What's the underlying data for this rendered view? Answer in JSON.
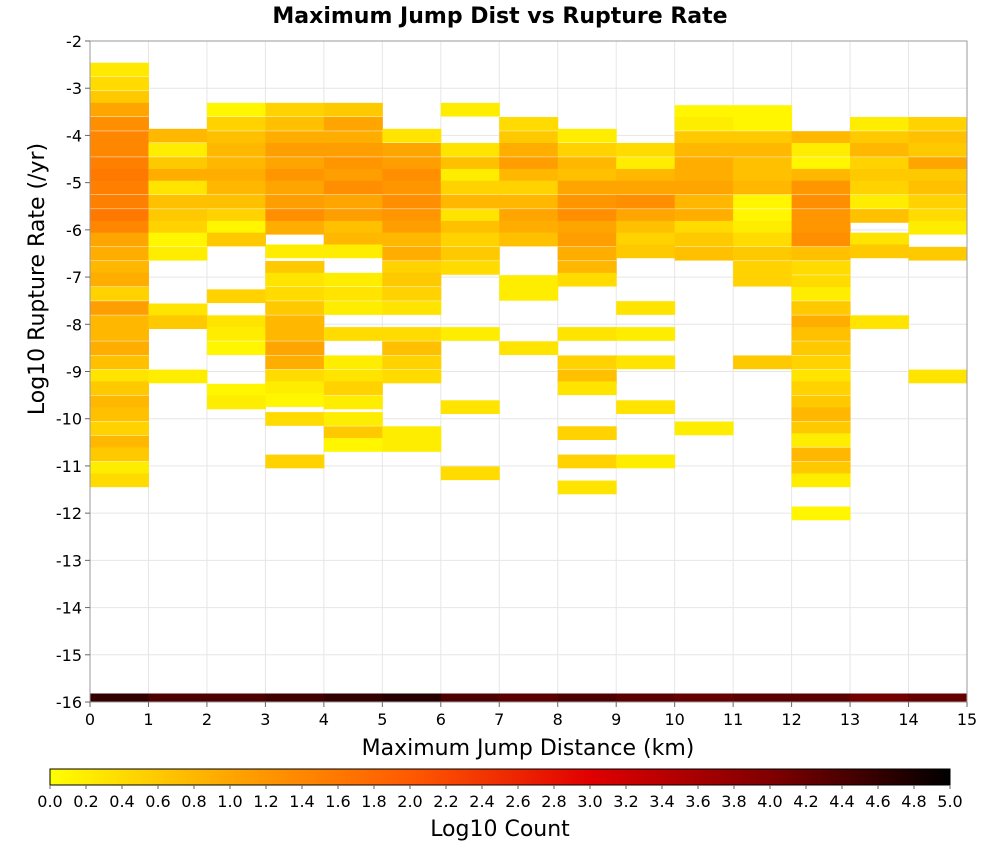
{
  "chart_data": {
    "type": "heatmap",
    "title": "Maximum Jump Dist vs Rupture Rate",
    "xlabel": "Maximum Jump Distance (km)",
    "ylabel": "Log10 Rupture Rate (/yr)",
    "xlim": [
      0,
      15
    ],
    "ylim": [
      -16,
      -2
    ],
    "x_ticks": [
      "0",
      "1",
      "2",
      "3",
      "4",
      "5",
      "6",
      "7",
      "8",
      "9",
      "10",
      "11",
      "12",
      "13",
      "14",
      "15"
    ],
    "y_ticks": [
      "-2",
      "-3",
      "-4",
      "-5",
      "-6",
      "-7",
      "-8",
      "-9",
      "-10",
      "-11",
      "-12",
      "-13",
      "-14",
      "-15",
      "-16"
    ],
    "x_bin_width": 1,
    "y_bin_height": 0.28,
    "grid": true,
    "colorbar": {
      "label": "Log10 Count",
      "range": [
        0,
        5
      ],
      "ticks": [
        "0.0",
        "0.2",
        "0.4",
        "0.6",
        "0.8",
        "1.0",
        "1.2",
        "1.4",
        "1.6",
        "1.8",
        "2.0",
        "2.2",
        "2.4",
        "2.6",
        "2.8",
        "3.0",
        "3.2",
        "3.4",
        "3.6",
        "3.8",
        "4.0",
        "4.2",
        "4.4",
        "4.6",
        "4.8",
        "5.0"
      ],
      "colors": [
        "#ffff00",
        "#ffa500",
        "#ff5a00",
        "#e00000",
        "#800000",
        "#000000"
      ],
      "position": "bottom"
    },
    "bottom_row": {
      "y": -16,
      "values": [
        4.6,
        4.4,
        4.4,
        4.5,
        4.6,
        4.7,
        4.4,
        4.3,
        4.4,
        4.3,
        4.2,
        4.3,
        4.3,
        4.1,
        4.2
      ]
    },
    "columns": [
      {
        "x": 0,
        "cells": [
          [
            -2.6,
            0.25
          ],
          [
            -2.9,
            0.4
          ],
          [
            -3.2,
            0.6
          ],
          [
            -3.45,
            1.0
          ],
          [
            -3.75,
            1.3
          ],
          [
            -4.05,
            1.4
          ],
          [
            -4.3,
            1.4
          ],
          [
            -4.6,
            1.5
          ],
          [
            -4.85,
            1.6
          ],
          [
            -5.1,
            1.5
          ],
          [
            -5.4,
            1.5
          ],
          [
            -5.7,
            1.6
          ],
          [
            -5.95,
            1.4
          ],
          [
            -6.2,
            1.0
          ],
          [
            -6.5,
            0.9
          ],
          [
            -6.8,
            0.8
          ],
          [
            -7.05,
            0.9
          ],
          [
            -7.35,
            0.5
          ],
          [
            -7.65,
            1.1
          ],
          [
            -7.95,
            0.8
          ],
          [
            -8.2,
            0.8
          ],
          [
            -8.5,
            0.9
          ],
          [
            -8.8,
            0.7
          ],
          [
            -9.1,
            0.3
          ],
          [
            -9.35,
            0.6
          ],
          [
            -9.65,
            0.8
          ],
          [
            -9.9,
            0.7
          ],
          [
            -10.2,
            0.5
          ],
          [
            -10.5,
            0.8
          ],
          [
            -10.75,
            0.6
          ],
          [
            -11.05,
            0.2
          ],
          [
            -11.3,
            0.4
          ]
        ]
      },
      {
        "x": 1,
        "cells": [
          [
            -4.0,
            0.8
          ],
          [
            -4.3,
            0.2
          ],
          [
            -4.6,
            0.6
          ],
          [
            -4.85,
            0.9
          ],
          [
            -5.1,
            0.3
          ],
          [
            -5.4,
            0.7
          ],
          [
            -5.7,
            0.6
          ],
          [
            -5.95,
            0.5
          ],
          [
            -6.2,
            0.1
          ],
          [
            -6.5,
            0.2
          ],
          [
            -7.7,
            0.3
          ],
          [
            -7.95,
            0.6
          ],
          [
            -9.1,
            0.2
          ]
        ]
      },
      {
        "x": 2,
        "cells": [
          [
            -3.45,
            0.1
          ],
          [
            -3.75,
            0.5
          ],
          [
            -4.05,
            0.7
          ],
          [
            -4.3,
            0.8
          ],
          [
            -4.6,
            0.8
          ],
          [
            -4.85,
            0.9
          ],
          [
            -5.1,
            0.8
          ],
          [
            -5.4,
            0.7
          ],
          [
            -5.7,
            0.5
          ],
          [
            -5.95,
            0.1
          ],
          [
            -6.2,
            0.6
          ],
          [
            -7.4,
            0.5
          ],
          [
            -7.95,
            0.3
          ],
          [
            -8.2,
            0.2
          ],
          [
            -8.5,
            0.1
          ],
          [
            -9.4,
            0.1
          ],
          [
            -9.65,
            0.2
          ]
        ]
      },
      {
        "x": 3,
        "cells": [
          [
            -3.45,
            0.5
          ],
          [
            -3.75,
            0.7
          ],
          [
            -4.05,
            0.9
          ],
          [
            -4.3,
            1.1
          ],
          [
            -4.6,
            1.0
          ],
          [
            -4.85,
            1.2
          ],
          [
            -5.1,
            1.0
          ],
          [
            -5.4,
            1.1
          ],
          [
            -5.7,
            1.3
          ],
          [
            -5.95,
            0.9
          ],
          [
            -6.45,
            0.2
          ],
          [
            -6.8,
            0.6
          ],
          [
            -7.05,
            0.3
          ],
          [
            -7.35,
            0.4
          ],
          [
            -7.65,
            0.6
          ],
          [
            -7.95,
            0.8
          ],
          [
            -8.2,
            0.8
          ],
          [
            -8.5,
            1.0
          ],
          [
            -8.8,
            0.9
          ],
          [
            -9.1,
            0.4
          ],
          [
            -9.35,
            0.2
          ],
          [
            -9.6,
            0.1
          ],
          [
            -10.0,
            0.4
          ],
          [
            -10.9,
            0.5
          ]
        ]
      },
      {
        "x": 4,
        "cells": [
          [
            -3.45,
            0.6
          ],
          [
            -3.75,
            1.0
          ],
          [
            -4.05,
            0.9
          ],
          [
            -4.3,
            1.1
          ],
          [
            -4.6,
            1.2
          ],
          [
            -4.85,
            1.1
          ],
          [
            -5.1,
            1.3
          ],
          [
            -5.4,
            1.0
          ],
          [
            -5.7,
            1.1
          ],
          [
            -5.95,
            0.7
          ],
          [
            -6.2,
            0.8
          ],
          [
            -6.45,
            0.2
          ],
          [
            -7.05,
            0.2
          ],
          [
            -7.35,
            0.3
          ],
          [
            -7.65,
            0.2
          ],
          [
            -8.2,
            0.4
          ],
          [
            -8.8,
            0.2
          ],
          [
            -9.1,
            0.3
          ],
          [
            -9.35,
            0.5
          ],
          [
            -9.65,
            0.2
          ],
          [
            -10.0,
            0.2
          ],
          [
            -10.3,
            0.6
          ],
          [
            -10.55,
            0.1
          ]
        ]
      },
      {
        "x": 5,
        "cells": [
          [
            -4.0,
            0.3
          ],
          [
            -4.3,
            1.0
          ],
          [
            -4.6,
            1.1
          ],
          [
            -4.85,
            1.3
          ],
          [
            -5.1,
            1.2
          ],
          [
            -5.4,
            1.3
          ],
          [
            -5.7,
            1.2
          ],
          [
            -5.95,
            1.1
          ],
          [
            -6.2,
            0.8
          ],
          [
            -6.5,
            0.9
          ],
          [
            -6.8,
            0.5
          ],
          [
            -7.05,
            0.6
          ],
          [
            -7.35,
            0.5
          ],
          [
            -7.65,
            0.3
          ],
          [
            -8.2,
            0.4
          ],
          [
            -8.5,
            0.7
          ],
          [
            -8.8,
            0.5
          ],
          [
            -9.1,
            0.4
          ],
          [
            -10.3,
            0.2
          ],
          [
            -10.55,
            0.2
          ]
        ]
      },
      {
        "x": 6,
        "cells": [
          [
            -3.45,
            0.2
          ],
          [
            -4.3,
            0.3
          ],
          [
            -4.6,
            0.7
          ],
          [
            -4.85,
            0.2
          ],
          [
            -5.1,
            0.5
          ],
          [
            -5.4,
            0.8
          ],
          [
            -5.7,
            0.3
          ],
          [
            -5.95,
            0.7
          ],
          [
            -6.2,
            0.5
          ],
          [
            -6.5,
            0.6
          ],
          [
            -6.8,
            0.4
          ],
          [
            -8.2,
            0.2
          ],
          [
            -9.75,
            0.3
          ],
          [
            -11.15,
            0.4
          ]
        ]
      },
      {
        "x": 7,
        "cells": [
          [
            -3.75,
            0.4
          ],
          [
            -4.05,
            0.6
          ],
          [
            -4.3,
            0.9
          ],
          [
            -4.6,
            1.1
          ],
          [
            -4.85,
            0.8
          ],
          [
            -5.1,
            0.5
          ],
          [
            -5.4,
            0.8
          ],
          [
            -5.7,
            1.0
          ],
          [
            -5.95,
            0.9
          ],
          [
            -6.2,
            0.7
          ],
          [
            -7.1,
            0.2
          ],
          [
            -7.35,
            0.2
          ],
          [
            -8.5,
            0.3
          ]
        ]
      },
      {
        "x": 8,
        "cells": [
          [
            -4.0,
            0.2
          ],
          [
            -4.3,
            0.5
          ],
          [
            -4.6,
            0.8
          ],
          [
            -4.85,
            0.7
          ],
          [
            -5.1,
            1.0
          ],
          [
            -5.4,
            1.2
          ],
          [
            -5.7,
            1.3
          ],
          [
            -5.95,
            1.0
          ],
          [
            -6.2,
            1.1
          ],
          [
            -6.5,
            0.9
          ],
          [
            -6.8,
            0.8
          ],
          [
            -7.05,
            0.4
          ],
          [
            -8.2,
            0.3
          ],
          [
            -8.8,
            0.5
          ],
          [
            -9.1,
            0.7
          ],
          [
            -9.35,
            0.3
          ],
          [
            -10.3,
            0.5
          ],
          [
            -10.9,
            0.5
          ],
          [
            -11.45,
            0.3
          ]
        ]
      },
      {
        "x": 9,
        "cells": [
          [
            -4.3,
            0.4
          ],
          [
            -4.6,
            0.2
          ],
          [
            -4.85,
            0.8
          ],
          [
            -5.1,
            1.0
          ],
          [
            -5.4,
            1.3
          ],
          [
            -5.7,
            1.0
          ],
          [
            -5.95,
            0.7
          ],
          [
            -6.2,
            0.5
          ],
          [
            -6.45,
            0.6
          ],
          [
            -7.65,
            0.3
          ],
          [
            -8.2,
            0.2
          ],
          [
            -8.8,
            0.3
          ],
          [
            -9.75,
            0.3
          ],
          [
            -10.9,
            0.2
          ]
        ]
      },
      {
        "x": 10,
        "cells": [
          [
            -3.5,
            0.1
          ],
          [
            -3.75,
            0.2
          ],
          [
            -4.05,
            0.6
          ],
          [
            -4.3,
            0.8
          ],
          [
            -4.6,
            0.9
          ],
          [
            -4.85,
            0.9
          ],
          [
            -5.1,
            1.0
          ],
          [
            -5.4,
            0.8
          ],
          [
            -5.7,
            0.9
          ],
          [
            -5.95,
            0.4
          ],
          [
            -6.2,
            0.6
          ],
          [
            -6.5,
            0.7
          ],
          [
            -10.2,
            0.2
          ]
        ]
      },
      {
        "x": 11,
        "cells": [
          [
            -3.5,
            0.1
          ],
          [
            -3.75,
            0.1
          ],
          [
            -4.05,
            0.6
          ],
          [
            -4.3,
            0.8
          ],
          [
            -4.6,
            0.7
          ],
          [
            -4.85,
            0.7
          ],
          [
            -5.1,
            0.8
          ],
          [
            -5.4,
            0.1
          ],
          [
            -5.7,
            0.1
          ],
          [
            -5.95,
            0.2
          ],
          [
            -6.2,
            0.4
          ],
          [
            -6.5,
            0.6
          ],
          [
            -6.8,
            0.5
          ],
          [
            -7.05,
            0.5
          ],
          [
            -8.8,
            0.6
          ]
        ]
      },
      {
        "x": 12,
        "cells": [
          [
            -4.05,
            0.8
          ],
          [
            -4.3,
            0.2
          ],
          [
            -4.6,
            0.1
          ],
          [
            -4.85,
            0.8
          ],
          [
            -5.1,
            1.2
          ],
          [
            -5.4,
            1.3
          ],
          [
            -5.7,
            1.2
          ],
          [
            -5.95,
            1.2
          ],
          [
            -6.2,
            1.3
          ],
          [
            -6.5,
            0.7
          ],
          [
            -6.8,
            0.4
          ],
          [
            -7.1,
            0.4
          ],
          [
            -7.35,
            0.2
          ],
          [
            -7.65,
            0.6
          ],
          [
            -7.95,
            0.9
          ],
          [
            -8.2,
            0.7
          ],
          [
            -8.5,
            0.6
          ],
          [
            -8.8,
            0.5
          ],
          [
            -9.1,
            0.3
          ],
          [
            -9.35,
            0.5
          ],
          [
            -9.65,
            0.6
          ],
          [
            -9.9,
            0.8
          ],
          [
            -10.2,
            0.6
          ],
          [
            -10.45,
            0.2
          ],
          [
            -10.75,
            0.8
          ],
          [
            -11.05,
            0.6
          ],
          [
            -11.3,
            0.2
          ],
          [
            -12.0,
            0.1
          ]
        ]
      },
      {
        "x": 13,
        "cells": [
          [
            -3.75,
            0.2
          ],
          [
            -4.05,
            0.6
          ],
          [
            -4.3,
            0.8
          ],
          [
            -4.6,
            0.5
          ],
          [
            -4.85,
            0.6
          ],
          [
            -5.1,
            0.5
          ],
          [
            -5.4,
            0.2
          ],
          [
            -5.7,
            0.7
          ],
          [
            -6.2,
            0.3
          ],
          [
            -6.45,
            0.6
          ],
          [
            -7.95,
            0.3
          ]
        ]
      },
      {
        "x": 14,
        "cells": [
          [
            -3.75,
            0.5
          ],
          [
            -4.05,
            0.7
          ],
          [
            -4.3,
            0.6
          ],
          [
            -4.6,
            1.0
          ],
          [
            -4.85,
            0.6
          ],
          [
            -5.1,
            0.7
          ],
          [
            -5.4,
            0.5
          ],
          [
            -5.7,
            0.4
          ],
          [
            -5.95,
            0.2
          ],
          [
            -6.5,
            0.6
          ],
          [
            -9.1,
            0.3
          ]
        ]
      }
    ]
  }
}
